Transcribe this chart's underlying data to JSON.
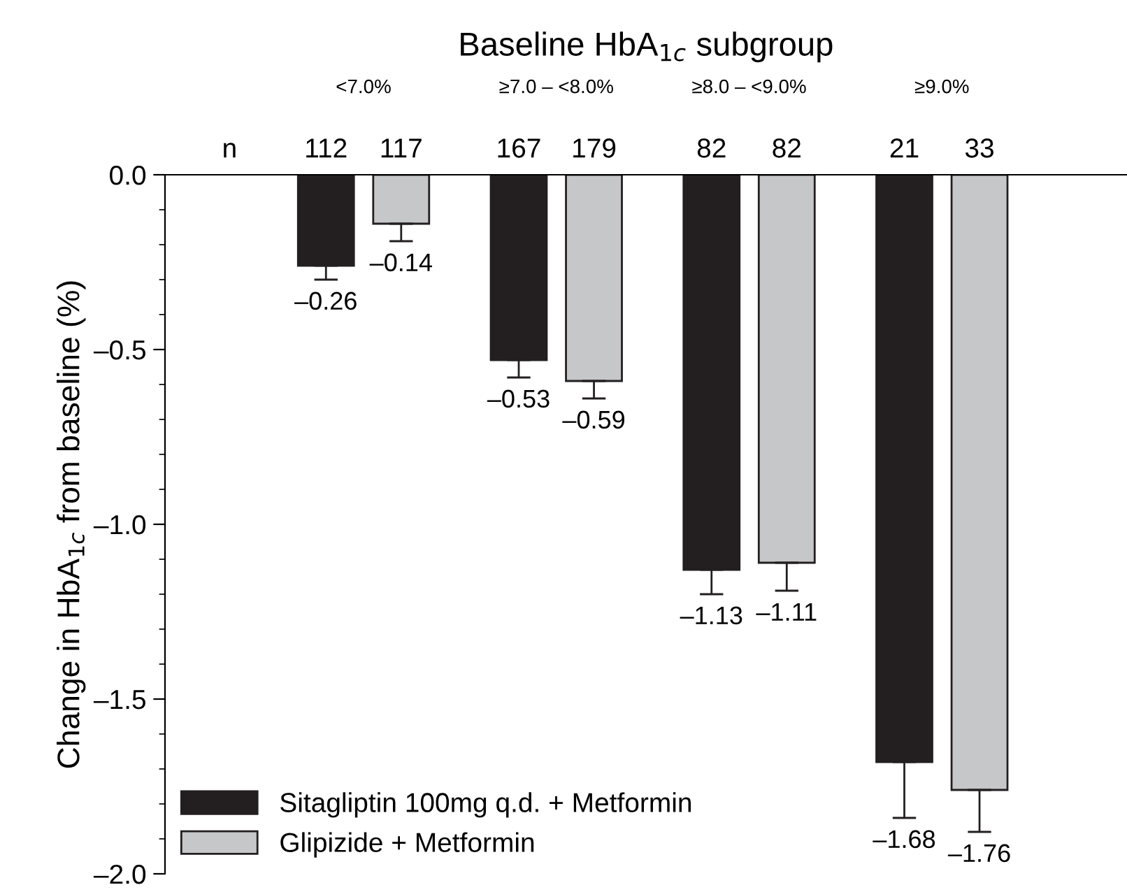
{
  "chart_data": {
    "type": "bar",
    "xlabel": "Baseline HbA$_{1c}$ subgroup",
    "ylabel": "Change in HbA$_{1c}$ from baseline (%)",
    "categories": [
      "<7.0%",
      "≥7.0 – <8.0%",
      "≥8.0 – <9.0%",
      "≥9.0%"
    ],
    "series": [
      {
        "name": "Sitagliptin 100mg q.d. + Metformin",
        "color": "#231f20",
        "values": [
          -0.26,
          -0.53,
          -1.13,
          -1.68
        ],
        "errors": [
          [
            -0.3,
            -0.26
          ],
          [
            -0.58,
            -0.53
          ],
          [
            -1.2,
            -1.13
          ],
          [
            -1.84,
            -1.68
          ]
        ],
        "value_labels": [
          "–0.26",
          "–0.53",
          "–1.13",
          "–1.68"
        ]
      },
      {
        "name": "Glipizide + Metformin",
        "color": "#c6c7c9",
        "values": [
          -0.14,
          -0.59,
          -1.11,
          -1.76
        ],
        "errors": [
          [
            -0.19,
            -0.14
          ],
          [
            -0.64,
            -0.59
          ],
          [
            -1.19,
            -1.11
          ],
          [
            -1.88,
            -1.76
          ]
        ],
        "value_labels": [
          "–0.14",
          "–0.59",
          "–1.11",
          "–1.76"
        ]
      }
    ],
    "annotations": [
      "n",
      "112",
      "117",
      "167",
      "179",
      "82",
      "82",
      "21",
      "33"
    ],
    "ylim": [
      -2.0,
      0.0
    ],
    "yticks": [
      {
        "value": -2.0,
        "label": "–2.0"
      },
      {
        "value": -1.5,
        "label": "–1.5"
      },
      {
        "value": -1.0,
        "label": "–1.0"
      },
      {
        "value": -0.5,
        "label": "–0.5"
      },
      {
        "value": 0.0,
        "label": "0.0"
      }
    ],
    "grid": false,
    "legend": "bottom left"
  }
}
